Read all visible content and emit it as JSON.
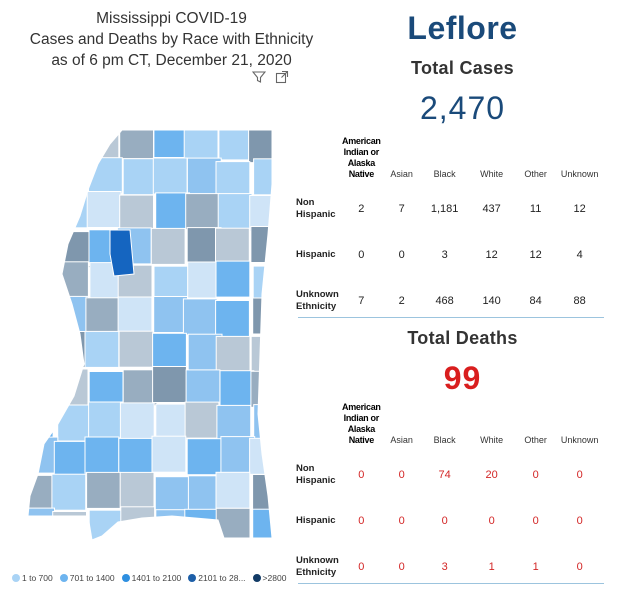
{
  "header": {
    "line1": "Mississippi COVID-19",
    "line2": "Cases and Deaths by Race with Ethnicity",
    "line3": "as of 6 pm CT, December 21, 2020"
  },
  "county": "Leflore",
  "cases": {
    "label": "Total Cases",
    "total": "2,470",
    "columns": [
      "American Indian or Alaska Native",
      "Asian",
      "Black",
      "White",
      "Other",
      "Unknown"
    ],
    "rows": [
      {
        "label": "Non Hispanic",
        "values": [
          "2",
          "7",
          "1,181",
          "437",
          "11",
          "12"
        ]
      },
      {
        "label": "Hispanic",
        "values": [
          "0",
          "0",
          "3",
          "12",
          "12",
          "4"
        ]
      },
      {
        "label": "Unknown Ethnicity",
        "values": [
          "7",
          "2",
          "468",
          "140",
          "84",
          "88"
        ]
      }
    ]
  },
  "deaths": {
    "label": "Total Deaths",
    "total": "99",
    "columns": [
      "American Indian or Alaska Native",
      "Asian",
      "Black",
      "White",
      "Other",
      "Unknown"
    ],
    "rows": [
      {
        "label": "Non Hispanic",
        "values": [
          "0",
          "0",
          "74",
          "20",
          "0",
          "0"
        ]
      },
      {
        "label": "Hispanic",
        "values": [
          "0",
          "0",
          "0",
          "0",
          "0",
          "0"
        ]
      },
      {
        "label": "Unknown Ethnicity",
        "values": [
          "0",
          "0",
          "3",
          "1",
          "1",
          "0"
        ]
      }
    ]
  },
  "legend": [
    {
      "label": "1 to 700",
      "color": "#a9d3f5"
    },
    {
      "label": "701 to 1400",
      "color": "#6db4ef"
    },
    {
      "label": "1401 to 2100",
      "color": "#2e8fe0"
    },
    {
      "label": "2101 to 28...",
      "color": "#1d5fa8"
    },
    {
      "label": ">2800",
      "color": "#123b66"
    }
  ],
  "map": {
    "selected_color": "#1565c0",
    "palette": [
      "#cfe4f7",
      "#a9d3f5",
      "#8fc3f0",
      "#6db4ef",
      "#b9c8d6",
      "#98adc0",
      "#7f97ad"
    ]
  }
}
